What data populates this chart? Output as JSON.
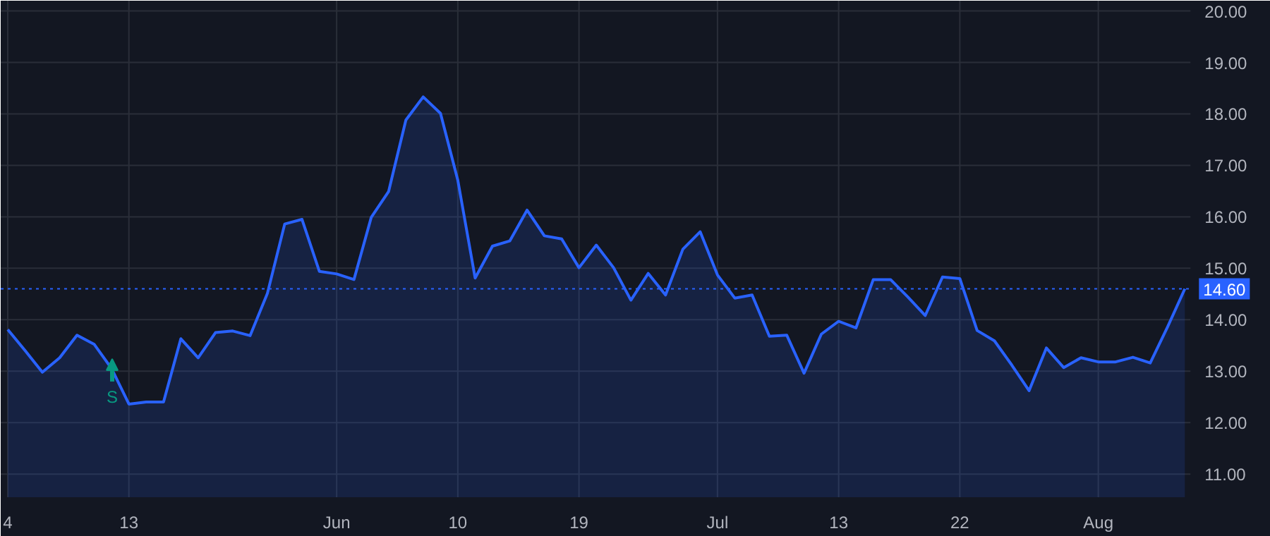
{
  "chart_data": {
    "type": "area",
    "categories": [
      "4",
      null,
      null,
      null,
      null,
      null,
      null,
      "13",
      null,
      null,
      null,
      null,
      null,
      null,
      null,
      null,
      null,
      null,
      null,
      "Jun",
      null,
      null,
      null,
      null,
      null,
      null,
      "10",
      null,
      null,
      null,
      null,
      null,
      null,
      "19",
      null,
      null,
      null,
      null,
      null,
      null,
      null,
      "Jul",
      null,
      null,
      null,
      null,
      null,
      null,
      "13",
      null,
      null,
      null,
      null,
      null,
      null,
      "22",
      null,
      null,
      null,
      null,
      null,
      null,
      null,
      "Aug",
      null,
      null,
      null,
      null,
      null
    ],
    "series": [
      {
        "color": "#2962ff",
        "values": [
          13.81,
          13.4,
          12.98,
          13.26,
          13.7,
          13.52,
          13.05,
          12.36,
          12.4,
          12.4,
          13.63,
          13.26,
          13.75,
          13.78,
          13.69,
          14.51,
          15.86,
          15.95,
          14.94,
          14.89,
          14.78,
          15.99,
          16.49,
          17.88,
          18.33,
          18.01,
          16.71,
          14.81,
          15.43,
          15.53,
          16.13,
          15.63,
          15.57,
          15.01,
          15.45,
          15.01,
          14.38,
          14.9,
          14.48,
          15.37,
          15.71,
          14.87,
          14.42,
          14.48,
          13.68,
          13.7,
          12.96,
          13.72,
          13.97,
          13.84,
          14.78,
          14.78,
          14.44,
          14.08,
          14.83,
          14.8,
          13.79,
          13.59,
          13.12,
          12.62,
          13.45,
          13.07,
          13.26,
          13.18,
          13.18,
          13.27,
          13.16,
          13.86,
          14.6
        ]
      }
    ],
    "ylim": [
      10.55,
      20.2
    ],
    "yticks": [
      {
        "value": 11,
        "label": "11.00"
      },
      {
        "value": 12,
        "label": "12.00"
      },
      {
        "value": 13,
        "label": "13.00"
      },
      {
        "value": 14,
        "label": "14.00"
      },
      {
        "value": 15,
        "label": "15.00"
      },
      {
        "value": 16,
        "label": "16.00"
      },
      {
        "value": 17,
        "label": "17.00"
      },
      {
        "value": 18,
        "label": "18.00"
      },
      {
        "value": 19,
        "label": "19.00"
      },
      {
        "value": 20,
        "label": "20.00"
      }
    ],
    "ref_lines": [
      {
        "axis": "y",
        "value": 14.6,
        "label": "14.60",
        "color": "#2962ff",
        "line_style": "dotted"
      }
    ],
    "annotations": [
      "S"
    ],
    "grid": true,
    "marker": "none",
    "line_style": "solid"
  }
}
